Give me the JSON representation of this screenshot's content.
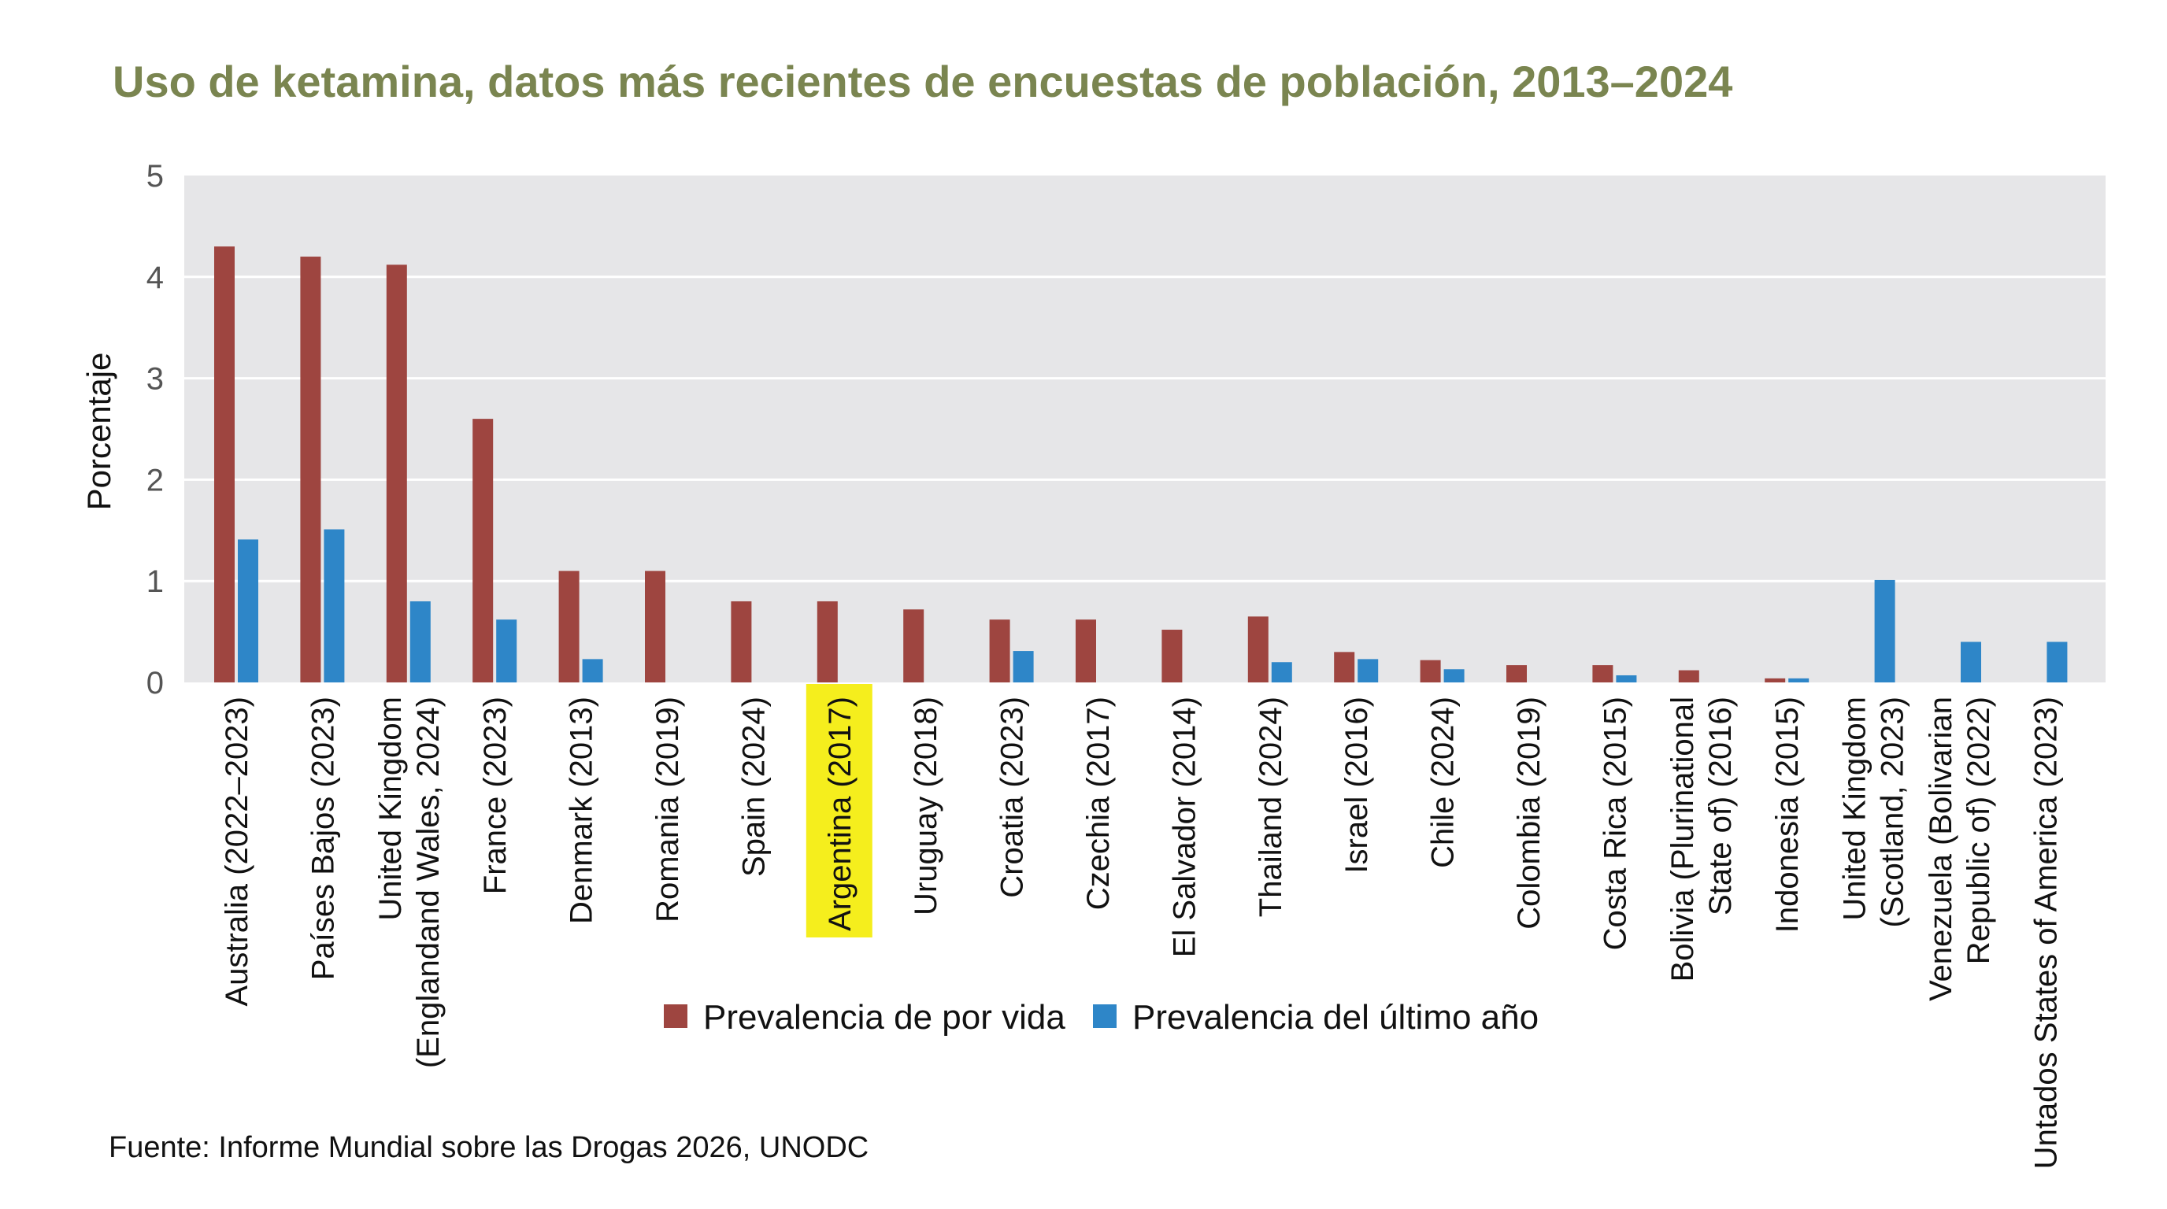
{
  "chart_data": {
    "type": "bar",
    "title": "Uso de ketamina, datos más recientes de encuestas de población, 2013–2024",
    "ylabel": "Porcentaje",
    "xlabel": "",
    "ylim": [
      0,
      5
    ],
    "yticks": [
      "0",
      "1",
      "2",
      "3",
      "4",
      "5"
    ],
    "grid": true,
    "legend_position": "bottom",
    "highlighted_category": "Argentina (2017)",
    "highlight_color": "#f5ee1d",
    "categories": [
      "Australia (2022–2023)",
      "Países Bajos (2023)",
      "United Kingdom (Englandand Wales, 2024)",
      "France (2023)",
      "Denmark (2013)",
      "Romania (2019)",
      "Spain (2024)",
      "Argentina (2017)",
      "Uruguay (2018)",
      "Croatia (2023)",
      "Czechia (2017)",
      "El Salvador (2014)",
      "Thailand (2024)",
      "Israel (2016)",
      "Chile (2024)",
      "Colombia (2019)",
      "Costa Rica (2015)",
      "Bolivia (Plurinational State of) (2016)",
      "Indonesia (2015)",
      "United Kingdom (Scotland, 2023)",
      "Venezuela (Bolivarian Republic of) (2022)",
      "Untados States of America (2023)"
    ],
    "category_lines": [
      [
        "Australia (2022–2023)"
      ],
      [
        "Países Bajos (2023)"
      ],
      [
        "United Kingdom",
        "(Englandand Wales, 2024)"
      ],
      [
        "France (2023)"
      ],
      [
        "Denmark (2013)"
      ],
      [
        "Romania (2019)"
      ],
      [
        "Spain (2024)"
      ],
      [
        "Argentina (2017)"
      ],
      [
        "Uruguay (2018)"
      ],
      [
        "Croatia (2023)"
      ],
      [
        "Czechia (2017)"
      ],
      [
        "El Salvador (2014)"
      ],
      [
        "Thailand (2024)"
      ],
      [
        "Israel (2016)"
      ],
      [
        "Chile (2024)"
      ],
      [
        "Colombia (2019)"
      ],
      [
        "Costa Rica (2015)"
      ],
      [
        "Bolivia (Plurinational",
        "State of) (2016)"
      ],
      [
        "Indonesia (2015)"
      ],
      [
        "United Kingdom",
        "(Scotland, 2023)"
      ],
      [
        "Venezuela (Bolivarian",
        "Republic of) (2022)"
      ],
      [
        "Untados States of America (2023)"
      ]
    ],
    "series": [
      {
        "name": "Prevalencia de por vida",
        "color": "#9e4540",
        "values": [
          4.3,
          4.2,
          4.12,
          2.6,
          1.1,
          1.1,
          0.8,
          0.8,
          0.72,
          0.62,
          0.62,
          0.52,
          0.65,
          0.3,
          0.22,
          0.17,
          0.17,
          0.12,
          0.04,
          null,
          null,
          null
        ]
      },
      {
        "name": "Prevalencia del último año",
        "color": "#2e86c8",
        "values": [
          1.41,
          1.51,
          0.8,
          0.62,
          0.23,
          null,
          null,
          null,
          null,
          0.31,
          null,
          null,
          0.2,
          0.23,
          0.13,
          null,
          0.07,
          null,
          0.04,
          1.01,
          0.4,
          0.4
        ]
      }
    ]
  },
  "source": "Fuente: Informe Mundial sobre las Drogas 2026, UNODC",
  "colors": {
    "title": "#7a8550",
    "plot_background": "#e6e6e8",
    "gridline": "#ffffff"
  }
}
